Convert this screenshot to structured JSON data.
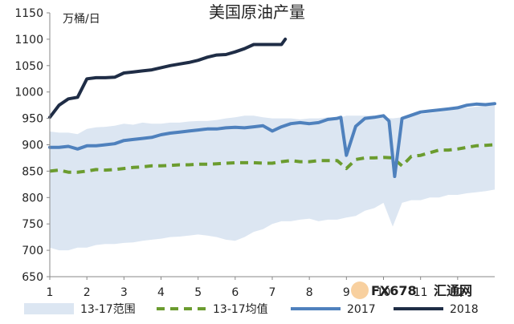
{
  "chart_data": {
    "type": "line",
    "title": "美国原油产量",
    "unit_label": "万桶/日",
    "ylim": [
      650,
      1150
    ],
    "yticks": [
      650,
      700,
      750,
      800,
      850,
      900,
      950,
      1000,
      1050,
      1100,
      1150
    ],
    "xlim": [
      1,
      13
    ],
    "xticks": [
      "1",
      "2",
      "3",
      "4",
      "5",
      "6",
      "7",
      "8",
      "9",
      "10",
      "11",
      "12"
    ],
    "band": {
      "name": "13-17范围",
      "color": "#dce6f2",
      "x": [
        1,
        1.25,
        1.5,
        1.75,
        2,
        2.25,
        2.5,
        2.75,
        3,
        3.25,
        3.5,
        3.75,
        4,
        4.25,
        4.5,
        4.75,
        5,
        5.25,
        5.5,
        5.75,
        6,
        6.25,
        6.5,
        6.75,
        7,
        7.25,
        7.5,
        7.75,
        8,
        8.25,
        8.5,
        8.75,
        9,
        9.25,
        9.5,
        9.75,
        10,
        10.25,
        10.5,
        10.75,
        11,
        11.25,
        11.5,
        11.75,
        12,
        12.25,
        12.5,
        12.75,
        13
      ],
      "upper": [
        925,
        923,
        923,
        920,
        930,
        933,
        934,
        936,
        940,
        938,
        942,
        940,
        940,
        942,
        942,
        944,
        945,
        945,
        947,
        950,
        952,
        955,
        955,
        952,
        950,
        950,
        950,
        948,
        950,
        950,
        952,
        950,
        955,
        955,
        955,
        955,
        952,
        950,
        952,
        955,
        958,
        960,
        962,
        965,
        968,
        970,
        972,
        975,
        980
      ],
      "lower": [
        705,
        700,
        700,
        705,
        705,
        710,
        712,
        712,
        714,
        715,
        718,
        720,
        722,
        725,
        726,
        728,
        730,
        728,
        725,
        720,
        718,
        725,
        735,
        740,
        750,
        755,
        755,
        758,
        760,
        755,
        758,
        758,
        762,
        765,
        775,
        780,
        790,
        745,
        790,
        795,
        795,
        800,
        800,
        805,
        805,
        808,
        810,
        812,
        815
      ]
    },
    "series": [
      {
        "name": "13-17均值",
        "color": "#6b9c2f",
        "style": "dashed",
        "x": [
          1,
          1.25,
          1.5,
          1.75,
          2,
          2.25,
          2.5,
          2.75,
          3,
          3.25,
          3.5,
          3.75,
          4,
          4.25,
          4.5,
          4.75,
          5,
          5.25,
          5.5,
          5.75,
          6,
          6.25,
          6.5,
          6.75,
          7,
          7.25,
          7.5,
          7.75,
          8,
          8.25,
          8.5,
          8.75,
          9,
          9.25,
          9.5,
          9.75,
          10,
          10.25,
          10.5,
          10.75,
          11,
          11.25,
          11.5,
          11.75,
          12,
          12.25,
          12.5,
          12.75,
          13
        ],
        "values": [
          850,
          852,
          848,
          848,
          850,
          853,
          852,
          853,
          855,
          857,
          858,
          860,
          860,
          861,
          862,
          862,
          863,
          863,
          864,
          865,
          866,
          866,
          866,
          865,
          865,
          868,
          870,
          868,
          868,
          870,
          870,
          870,
          855,
          872,
          875,
          875,
          876,
          875,
          860,
          878,
          880,
          885,
          890,
          890,
          892,
          895,
          898,
          899,
          900
        ]
      },
      {
        "name": "2017",
        "color": "#4f81bd",
        "style": "solid",
        "x": [
          1,
          1.25,
          1.5,
          1.75,
          2,
          2.25,
          2.5,
          2.75,
          3,
          3.25,
          3.5,
          3.75,
          4,
          4.25,
          4.5,
          4.75,
          5,
          5.25,
          5.5,
          5.75,
          6,
          6.25,
          6.5,
          6.75,
          7,
          7.25,
          7.5,
          7.75,
          8,
          8.25,
          8.5,
          8.75,
          8.85,
          9,
          9.25,
          9.5,
          9.75,
          10,
          10.15,
          10.3,
          10.5,
          10.75,
          11,
          11.25,
          11.5,
          11.75,
          12,
          12.25,
          12.5,
          12.75,
          13
        ],
        "values": [
          895,
          895,
          897,
          892,
          898,
          898,
          900,
          902,
          908,
          910,
          912,
          914,
          919,
          922,
          924,
          926,
          928,
          930,
          930,
          932,
          933,
          932,
          934,
          936,
          926,
          934,
          940,
          942,
          940,
          942,
          948,
          950,
          952,
          880,
          935,
          950,
          952,
          955,
          945,
          840,
          950,
          956,
          962,
          964,
          966,
          968,
          970,
          975,
          977,
          976,
          978
        ]
      },
      {
        "name": "2018",
        "color": "#1f2d46",
        "style": "solid",
        "x": [
          1,
          1.25,
          1.5,
          1.75,
          2,
          2.25,
          2.5,
          2.75,
          3,
          3.25,
          3.5,
          3.75,
          4,
          4.25,
          4.5,
          4.75,
          5,
          5.25,
          5.5,
          5.75,
          6,
          6.25,
          6.5,
          6.75,
          7,
          7.25,
          7.35
        ],
        "values": [
          952,
          975,
          987,
          990,
          1025,
          1027,
          1027,
          1028,
          1036,
          1038,
          1040,
          1042,
          1046,
          1050,
          1053,
          1056,
          1060,
          1066,
          1070,
          1071,
          1076,
          1082,
          1090,
          1090,
          1090,
          1090,
          1100
        ]
      }
    ],
    "legend": [
      "13-17范围",
      "13-17均值",
      "2017",
      "2018"
    ],
    "legend_position": "bottom",
    "grid": false
  },
  "watermark": {
    "text": "FX678",
    "text2": "汇通网"
  }
}
